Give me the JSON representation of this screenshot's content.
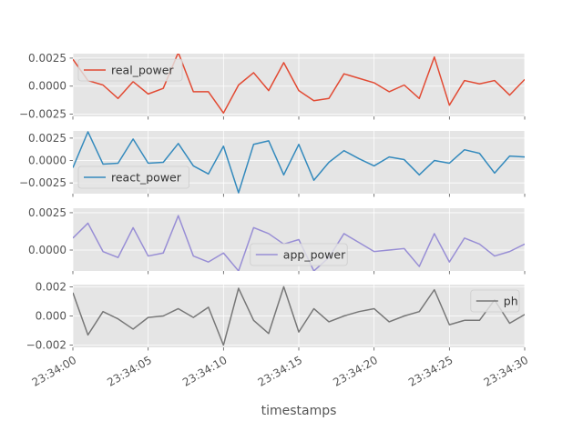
{
  "chart_data": {
    "type": "line",
    "xlabel": "timestamps",
    "x": [
      "23:34:00",
      "23:34:01",
      "23:34:02",
      "23:34:03",
      "23:34:04",
      "23:34:05",
      "23:34:06",
      "23:34:07",
      "23:34:08",
      "23:34:09",
      "23:34:10",
      "23:34:11",
      "23:34:12",
      "23:34:13",
      "23:34:14",
      "23:34:15",
      "23:34:16",
      "23:34:17",
      "23:34:18",
      "23:34:19",
      "23:34:20",
      "23:34:21",
      "23:34:22",
      "23:34:23",
      "23:34:24",
      "23:34:25",
      "23:34:26",
      "23:34:27",
      "23:34:28",
      "23:34:29",
      "23:34:30"
    ],
    "xticks": [
      "23:34:00",
      "23:34:05",
      "23:34:10",
      "23:34:15",
      "23:34:20",
      "23:34:25",
      "23:34:30"
    ],
    "grid": true,
    "panels": [
      {
        "name": "real_power",
        "color": "#E24A33",
        "legend": "upper left",
        "ylim": [
          -0.0027,
          0.0029
        ],
        "yticks": [
          0.0025,
          0.0,
          -0.0025
        ],
        "ytick_labels": [
          "0.0025",
          "0.0000",
          "−0.0025"
        ],
        "values": [
          0.0024,
          0.0005,
          0.0001,
          -0.0011,
          0.0004,
          -0.0007,
          -0.0002,
          0.003,
          -0.0005,
          -0.0005,
          -0.0024,
          0.0001,
          0.0012,
          -0.0004,
          0.0021,
          -0.0004,
          -0.0013,
          -0.0011,
          0.0011,
          0.0007,
          0.0003,
          -0.0005,
          0.0001,
          -0.0011,
          0.0026,
          -0.0017,
          0.0005,
          0.0002,
          0.0005,
          -0.0008,
          0.0006
        ]
      },
      {
        "name": "react_power",
        "color": "#348ABD",
        "legend": "lower left",
        "ylim": [
          -0.0037,
          0.0033
        ],
        "yticks": [
          0.0025,
          0.0,
          -0.0025
        ],
        "ytick_labels": [
          "0.0025",
          "0.0000",
          "−0.0025"
        ],
        "values": [
          -0.0008,
          0.0032,
          -0.0004,
          -0.0003,
          0.0024,
          -0.0003,
          -0.0002,
          0.0019,
          -0.0006,
          -0.0015,
          0.0016,
          -0.0036,
          0.0018,
          0.0022,
          -0.0016,
          0.0018,
          -0.0022,
          -0.0002,
          0.0011,
          0.0002,
          -0.0006,
          0.0004,
          0.0001,
          -0.0016,
          0.0,
          -0.0003,
          0.0012,
          0.0008,
          -0.0014,
          0.0005,
          0.0004
        ]
      },
      {
        "name": "app_power",
        "color": "#988ED5",
        "legend": "lower center",
        "ylim": [
          -0.0014,
          0.0028
        ],
        "yticks": [
          0.0025,
          0.0
        ],
        "ytick_labels": [
          "0.0025",
          "0.0000"
        ],
        "values": [
          0.0008,
          0.0018,
          -0.0001,
          -0.0005,
          0.0015,
          -0.0004,
          -0.0002,
          0.0023,
          -0.0004,
          -0.0008,
          -0.0002,
          -0.0014,
          0.0015,
          0.0011,
          0.0004,
          0.0007,
          -0.0014,
          -0.0005,
          0.0011,
          0.0005,
          -0.0001,
          0.0,
          0.0001,
          -0.0011,
          0.0011,
          -0.0008,
          0.0008,
          0.0004,
          -0.0004,
          -0.0001,
          0.0004
        ]
      },
      {
        "name": "ph",
        "color": "#777777",
        "legend": "upper right",
        "ylim": [
          -0.00215,
          0.00215
        ],
        "yticks": [
          0.002,
          0.0,
          -0.002
        ],
        "ytick_labels": [
          "0.002",
          "0.000",
          "−0.002"
        ],
        "values": [
          0.0016,
          -0.0013,
          0.0003,
          -0.0002,
          -0.0009,
          -0.0001,
          0.0,
          0.0005,
          -0.0001,
          0.0006,
          -0.002,
          0.0019,
          -0.0003,
          -0.0012,
          0.002,
          -0.0011,
          0.0005,
          -0.0004,
          0.0,
          0.0003,
          0.0005,
          -0.0004,
          0.0,
          0.0003,
          0.0018,
          -0.0006,
          -0.0003,
          -0.0003,
          0.0011,
          -0.0005,
          0.0001
        ]
      }
    ]
  }
}
